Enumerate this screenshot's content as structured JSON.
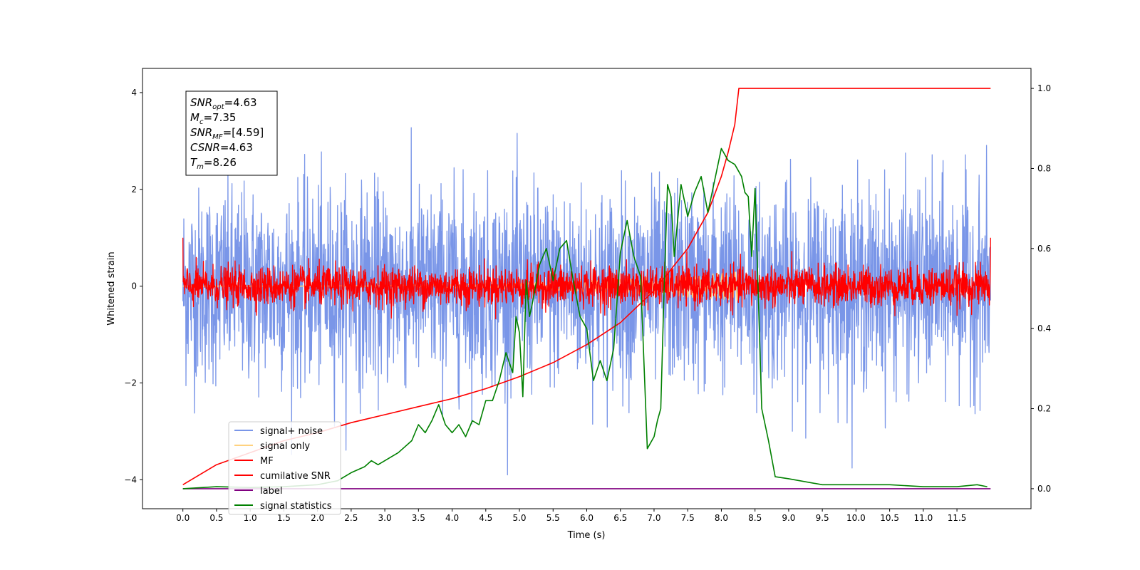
{
  "chart_data": {
    "type": "line",
    "xlabel": "Time (s)",
    "ylabel_left": "Whitened strain",
    "ylabel_right": "",
    "xlim": [
      -0.6,
      12.6
    ],
    "ylim_left": [
      -4.6,
      4.5
    ],
    "ylim_right": [
      -0.05,
      1.05
    ],
    "x_ticks": [
      0.0,
      0.5,
      1.0,
      1.5,
      2.0,
      2.5,
      3.0,
      3.5,
      4.0,
      4.5,
      5.0,
      5.5,
      6.0,
      6.5,
      7.0,
      7.5,
      8.0,
      8.5,
      9.0,
      9.5,
      10.0,
      10.5,
      11.0,
      11.5
    ],
    "x_tick_labels": [
      "0.0",
      "0.5",
      "1.0",
      "1.5",
      "2.0",
      "2.5",
      "3.0",
      "3.5",
      "4.0",
      "4.5",
      "5.0",
      "5.5",
      "6.0",
      "6.5",
      "7.0",
      "7.5",
      "8.0",
      "8.5",
      "9.0",
      "9.5",
      "10.0",
      "10.5",
      "11.0",
      "11.5"
    ],
    "y_left_ticks": [
      -4,
      -2,
      0,
      2,
      4
    ],
    "y_left_tick_labels": [
      "−4",
      "−2",
      "0",
      "2",
      "4"
    ],
    "y_right_ticks": [
      0.0,
      0.2,
      0.4,
      0.6,
      0.8,
      1.0
    ],
    "y_right_tick_labels": [
      "0.0",
      "0.2",
      "0.4",
      "0.6",
      "0.8",
      "1.0"
    ],
    "grid": false,
    "legend_position": "lower-left",
    "series": [
      {
        "name": "signal+ noise",
        "axis": "left",
        "color": "#7a96e8",
        "style": "noise",
        "x_range": [
          0.0,
          12.0
        ],
        "amplitude": 1.0,
        "peak_max": 4.05,
        "peak_min": -3.9
      },
      {
        "name": "signal only",
        "axis": "left",
        "color": "#ffd27f",
        "style": "chirp",
        "x_range": [
          0.0,
          8.26
        ],
        "amplitude": 0.3
      },
      {
        "name": "MF",
        "axis": "left",
        "color": "#ff0000",
        "style": "noise",
        "x_range": [
          0.0,
          12.0
        ],
        "amplitude": 0.2,
        "edge_spike": 1.0
      },
      {
        "name": "cumilative SNR",
        "axis": "right",
        "color": "#ff0000",
        "x": [
          0.0,
          0.5,
          1.0,
          1.5,
          2.0,
          2.5,
          3.0,
          3.5,
          4.0,
          4.5,
          5.0,
          5.5,
          6.0,
          6.5,
          7.0,
          7.5,
          7.8,
          8.0,
          8.1,
          8.2,
          8.26,
          9.0,
          10.0,
          11.0,
          12.0
        ],
        "values": [
          0.01,
          0.06,
          0.09,
          0.12,
          0.14,
          0.165,
          0.185,
          0.205,
          0.225,
          0.25,
          0.28,
          0.315,
          0.36,
          0.415,
          0.495,
          0.6,
          0.69,
          0.78,
          0.84,
          0.91,
          1.0,
          1.0,
          1.0,
          1.0,
          1.0
        ]
      },
      {
        "name": "label",
        "axis": "right",
        "color": "#800080",
        "x": [
          0.0,
          12.0
        ],
        "values": [
          0.0,
          0.0
        ]
      },
      {
        "name": "signal statistics",
        "axis": "right",
        "color": "#008000",
        "x": [
          0.0,
          0.5,
          1.0,
          1.5,
          2.0,
          2.3,
          2.5,
          2.7,
          2.8,
          2.9,
          3.0,
          3.2,
          3.4,
          3.5,
          3.6,
          3.7,
          3.8,
          3.9,
          4.0,
          4.1,
          4.2,
          4.3,
          4.4,
          4.5,
          4.6,
          4.7,
          4.8,
          4.9,
          4.95,
          5.0,
          5.05,
          5.1,
          5.15,
          5.2,
          5.3,
          5.4,
          5.5,
          5.6,
          5.7,
          5.8,
          5.9,
          6.0,
          6.1,
          6.2,
          6.3,
          6.4,
          6.5,
          6.6,
          6.7,
          6.8,
          6.9,
          7.0,
          7.05,
          7.1,
          7.15,
          7.2,
          7.25,
          7.3,
          7.4,
          7.5,
          7.6,
          7.7,
          7.8,
          7.9,
          8.0,
          8.1,
          8.2,
          8.3,
          8.35,
          8.4,
          8.45,
          8.5,
          8.6,
          8.7,
          8.8,
          9.0,
          9.5,
          10.0,
          10.5,
          11.0,
          11.5,
          11.8,
          11.95
        ],
        "values": [
          0.0,
          0.005,
          0.003,
          0.005,
          0.01,
          0.02,
          0.04,
          0.055,
          0.07,
          0.06,
          0.07,
          0.09,
          0.12,
          0.16,
          0.14,
          0.17,
          0.21,
          0.16,
          0.14,
          0.16,
          0.13,
          0.17,
          0.16,
          0.22,
          0.22,
          0.27,
          0.34,
          0.29,
          0.43,
          0.39,
          0.23,
          0.52,
          0.43,
          0.47,
          0.56,
          0.6,
          0.52,
          0.6,
          0.62,
          0.52,
          0.43,
          0.4,
          0.27,
          0.32,
          0.27,
          0.35,
          0.59,
          0.67,
          0.58,
          0.53,
          0.1,
          0.13,
          0.17,
          0.2,
          0.5,
          0.76,
          0.73,
          0.58,
          0.76,
          0.68,
          0.74,
          0.78,
          0.69,
          0.77,
          0.85,
          0.82,
          0.81,
          0.78,
          0.74,
          0.73,
          0.58,
          0.75,
          0.2,
          0.12,
          0.03,
          0.025,
          0.01,
          0.01,
          0.01,
          0.005,
          0.005,
          0.01,
          0.005
        ]
      }
    ],
    "annotation": [
      {
        "symbol": "SNR",
        "sub": "opt",
        "value": "=4.63"
      },
      {
        "symbol": "M",
        "sub": "c",
        "value": "=7.35"
      },
      {
        "symbol": "SNR",
        "sub": "MF",
        "value": "=[4.59]"
      },
      {
        "symbol": "CSNR",
        "sub": "",
        "value": "=4.63"
      },
      {
        "symbol": "T",
        "sub": "m",
        "value": "=8.26"
      }
    ]
  }
}
